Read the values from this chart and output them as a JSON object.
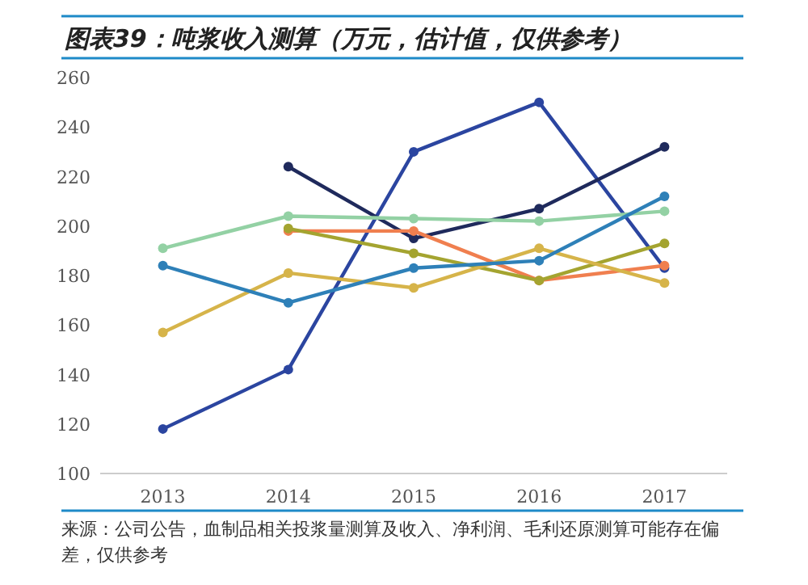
{
  "chart_data": {
    "type": "line",
    "title": "图表39：吨浆收入测算（万元，估计值，仅供参考）",
    "categories": [
      "2013",
      "2014",
      "2015",
      "2016",
      "2017"
    ],
    "series": [
      {
        "color": "#2b45a0",
        "values": [
          118,
          142,
          230,
          250,
          183
        ]
      },
      {
        "color": "#1f2a5c",
        "values": [
          null,
          224,
          195,
          207,
          232
        ]
      },
      {
        "color": "#93d1a4",
        "values": [
          191,
          204,
          203,
          202,
          206
        ]
      },
      {
        "color": "#f07f4f",
        "values": [
          null,
          198,
          198,
          178,
          184
        ]
      },
      {
        "color": "#a4a430",
        "values": [
          null,
          199,
          189,
          178,
          193
        ]
      },
      {
        "color": "#d6b44a",
        "values": [
          157,
          181,
          175,
          191,
          177
        ]
      },
      {
        "color": "#2e80b8",
        "values": [
          184,
          169,
          183,
          186,
          212
        ]
      }
    ],
    "ylim": [
      100,
      260
    ],
    "yticks": [
      100,
      120,
      140,
      160,
      180,
      200,
      220,
      240,
      260
    ],
    "marker": "circle",
    "grid": false,
    "annotations": [
      "来源：公司公告，血制品相关投浆量测算及收入、净利润、毛利还原测算可能存在偏差，仅供参考"
    ]
  }
}
